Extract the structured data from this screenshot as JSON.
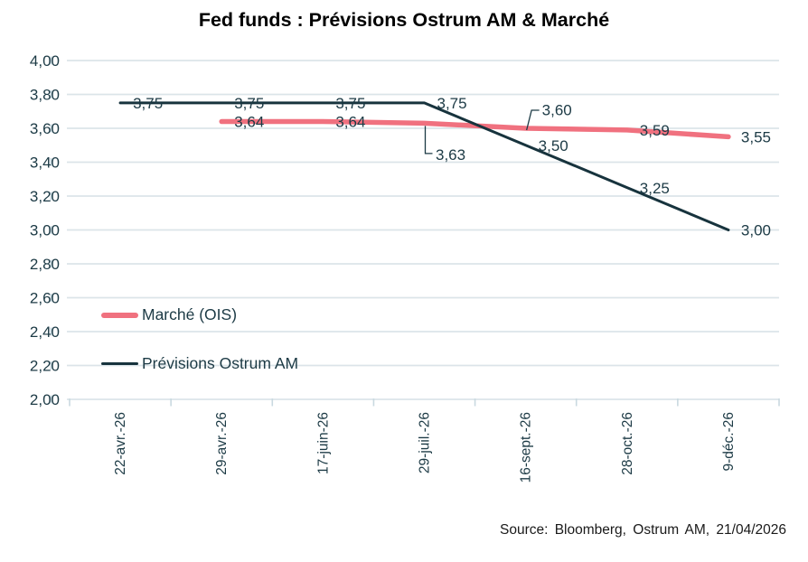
{
  "title": "Fed funds : Prévisions Ostrum AM & Marché",
  "source": "Source: Bloomberg, Ostrum AM, 21/04/2026",
  "legend": [
    {
      "label": "Marché (OIS)",
      "color": "#f0717f",
      "thickness": 6
    },
    {
      "label": "Prévisions Ostrum AM",
      "color": "#17333d",
      "thickness": 3
    }
  ],
  "colors": {
    "market_line": "#f0717f",
    "forecast_line": "#17333d",
    "axis_text": "#1c3a45",
    "label_text": "#1c3a45",
    "gridline": "#dbe4e9",
    "tick": "#c9d9e0",
    "leader": "#1c3a45",
    "title_text": "#000000",
    "source_text": "#1a1a1a"
  },
  "chart_data": {
    "type": "line",
    "title": "Fed funds : Prévisions Ostrum AM & Marché",
    "xlabel": "",
    "ylabel": "",
    "grid": true,
    "legend_position": "inside-lower-left",
    "categories": [
      "22-avr.-26",
      "29-avr.-26",
      "17-juin-26",
      "29-juil.-26",
      "16-sept.-26",
      "28-oct.-26",
      "9-déc.-26"
    ],
    "y_ticks": [
      "4,00",
      "3,80",
      "3,60",
      "3,40",
      "3,20",
      "3,00",
      "2,80",
      "2,60",
      "2,40",
      "2,20",
      "2,00"
    ],
    "ylim": [
      2.0,
      4.0
    ],
    "ytick_step": 0.2,
    "series": [
      {
        "name": "Prévisions Ostrum AM",
        "color": "#17333d",
        "line_width": 3,
        "start_index": 0,
        "values": [
          3.75,
          3.75,
          3.75,
          3.75,
          3.5,
          3.25,
          3.0
        ],
        "labels": [
          "3,75",
          "3,75",
          "3,75",
          "3,75",
          "3,50",
          "3,25",
          "3,00"
        ]
      },
      {
        "name": "Marché (OIS)",
        "color": "#f0717f",
        "line_width": 5.5,
        "start_index": 1,
        "values": [
          3.64,
          3.64,
          3.63,
          3.6,
          3.59,
          3.55
        ],
        "labels": [
          "3,64",
          "3,64",
          "3,63",
          "3,60",
          "3,59",
          "3,55"
        ]
      }
    ]
  }
}
